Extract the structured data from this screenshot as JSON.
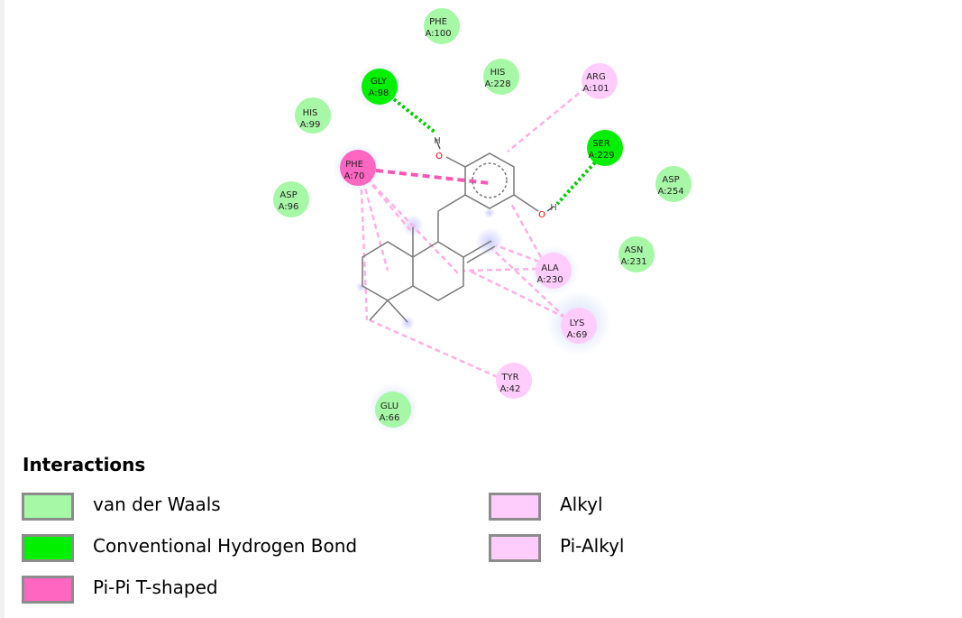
{
  "colors": {
    "van_der_waals": "#a6f7a6",
    "h_bond": "#00f000",
    "pi_pi": "#ff66c2",
    "alkyl": "#ffcdfb",
    "pi_alkyl": "#ffcdfb",
    "hbond_line": "#00cc00",
    "pi_pi_line": "#ff55b5",
    "alkyl_line": "#ffb0e6",
    "bond": "#777777",
    "oxygen": "#ff0000"
  },
  "residues": [
    {
      "name": "PHE",
      "number": "A:100",
      "type": "van_der_waals"
    },
    {
      "name": "GLY",
      "number": "A:98",
      "type": "h_bond"
    },
    {
      "name": "HIS",
      "number": "A:228",
      "type": "van_der_waals"
    },
    {
      "name": "ARG",
      "number": "A:101",
      "type": "alkyl"
    },
    {
      "name": "HIS",
      "number": "A:99",
      "type": "van_der_waals"
    },
    {
      "name": "SER",
      "number": "A:229",
      "type": "h_bond"
    },
    {
      "name": "PHE",
      "number": "A:70",
      "type": "pi_pi"
    },
    {
      "name": "ASP",
      "number": "A:254",
      "type": "van_der_waals"
    },
    {
      "name": "ASP",
      "number": "A:96",
      "type": "van_der_waals"
    },
    {
      "name": "ASN",
      "number": "A:231",
      "type": "van_der_waals"
    },
    {
      "name": "ALA",
      "number": "A:230",
      "type": "alkyl"
    },
    {
      "name": "LYS",
      "number": "A:69",
      "type": "alkyl"
    },
    {
      "name": "TYR",
      "number": "A:42",
      "type": "alkyl"
    },
    {
      "name": "GLU",
      "number": "A:66",
      "type": "van_der_waals"
    }
  ],
  "atom_labels": {
    "oxygen": "O",
    "hydrogen": "H"
  },
  "legend": {
    "title": "Interactions",
    "items": [
      {
        "label": "van der Waals",
        "color": "#a6f7a6"
      },
      {
        "label": "Conventional Hydrogen Bond",
        "color": "#00f000"
      },
      {
        "label": "Pi-Pi T-shaped",
        "color": "#ff66c2"
      },
      {
        "label": "Alkyl",
        "color": "#ffcdfb"
      },
      {
        "label": "Pi-Alkyl",
        "color": "#ffcdfb"
      }
    ]
  }
}
